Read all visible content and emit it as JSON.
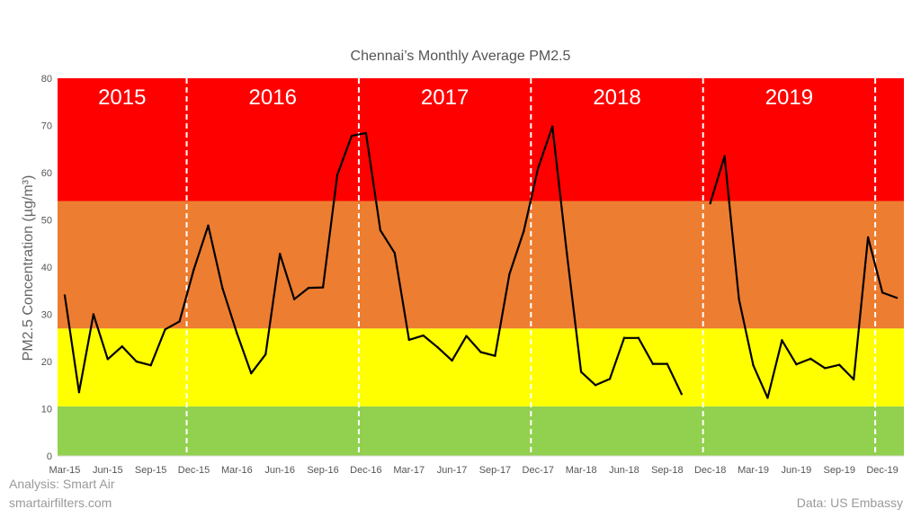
{
  "chart_data": {
    "type": "line",
    "title": "Chennai’s Monthly Average PM2.5",
    "xlabel": "",
    "ylabel": "PM2.5 Concentration (µg/m³)",
    "ylim": [
      0,
      80
    ],
    "yticks": [
      "0",
      "10",
      "20",
      "30",
      "40",
      "50",
      "60",
      "70",
      "80"
    ],
    "xticks": [
      "Mar-15",
      "Jun-15",
      "Sep-15",
      "Dec-15",
      "Mar-16",
      "Jun-16",
      "Sep-16",
      "Dec-16",
      "Mar-17",
      "Jun-17",
      "Sep-17",
      "Dec-17",
      "Mar-18",
      "Jun-18",
      "Sep-18",
      "Dec-18",
      "Mar-19",
      "Jun-19",
      "Sep-19",
      "Dec-19"
    ],
    "grid": false,
    "legend": "none",
    "bands": [
      {
        "from": 0,
        "to": 10.5,
        "color": "#92d050"
      },
      {
        "from": 10.5,
        "to": 27,
        "color": "#ffff00"
      },
      {
        "from": 27,
        "to": 54,
        "color": "#ed7d31"
      },
      {
        "from": 54,
        "to": 80,
        "color": "#ff0000"
      }
    ],
    "year_labels": [
      "2015",
      "2016",
      "2017",
      "2018",
      "2019"
    ],
    "year_dividers_after": [
      "Nov-15",
      "Nov-16",
      "Nov-17",
      "Nov-18",
      "Nov-19"
    ],
    "series": [
      {
        "color": "#000000",
        "points": [
          [
            "Mar-15",
            34
          ],
          [
            "Apr-15",
            13.5
          ],
          [
            "May-15",
            30
          ],
          [
            "Jun-15",
            20.5
          ],
          [
            "Jul-15",
            23.2
          ],
          [
            "Aug-15",
            20
          ],
          [
            "Sep-15",
            19.2
          ],
          [
            "Oct-15",
            26.8
          ],
          [
            "Nov-15",
            28.5
          ],
          [
            "Dec-15",
            39.5
          ],
          [
            "Jan-16",
            48.8
          ],
          [
            "Feb-16",
            35.5
          ],
          [
            "Mar-16",
            26
          ],
          [
            "Apr-16",
            17.5
          ],
          [
            "May-16",
            21.5
          ],
          [
            "Jun-16",
            42.8
          ],
          [
            "Jul-16",
            33.2
          ],
          [
            "Aug-16",
            35.6
          ],
          [
            "Sep-16",
            35.7
          ],
          [
            "Oct-16",
            59.5
          ],
          [
            "Nov-16",
            67.8
          ],
          [
            "Dec-16",
            68.4
          ],
          [
            "Jan-17",
            47.8
          ],
          [
            "Feb-17",
            43
          ],
          [
            "Mar-17",
            24.6
          ],
          [
            "Apr-17",
            25.5
          ],
          [
            "May-17",
            23
          ],
          [
            "Jun-17",
            20.2
          ],
          [
            "Jul-17",
            25.4
          ],
          [
            "Aug-17",
            22
          ],
          [
            "Sep-17",
            21.2
          ],
          [
            "Oct-17",
            38.5
          ],
          [
            "Nov-17",
            47.6
          ],
          [
            "Dec-17",
            61
          ],
          [
            "Jan-18",
            69.8
          ],
          [
            "Feb-18",
            43
          ],
          [
            "Mar-18",
            17.8
          ],
          [
            "Apr-18",
            15
          ],
          [
            "May-18",
            16.3
          ],
          [
            "Jun-18",
            25
          ],
          [
            "Jul-18",
            25
          ],
          [
            "Aug-18",
            19.5
          ],
          [
            "Sep-18",
            19.5
          ],
          [
            "Oct-18",
            13.1
          ],
          [
            "Nov-18",
            null
          ],
          [
            "Dec-18",
            53.5
          ],
          [
            "Jan-19",
            63.5
          ],
          [
            "Feb-19",
            33.2
          ],
          [
            "Mar-19",
            19.2
          ],
          [
            "Apr-19",
            12.3
          ],
          [
            "May-19",
            24.5
          ],
          [
            "Jun-19",
            19.4
          ],
          [
            "Jul-19",
            20.6
          ],
          [
            "Aug-19",
            18.6
          ],
          [
            "Sep-19",
            19.3
          ],
          [
            "Oct-19",
            16.2
          ],
          [
            "Nov-19",
            46.3
          ],
          [
            "Dec-19",
            34.6
          ],
          [
            "Jan-20",
            33.5
          ]
        ]
      }
    ]
  },
  "credits": {
    "analysis_line1": "Analysis: Smart Air",
    "analysis_line2": "smartairfilters.com",
    "data_source": "Data: US Embassy"
  }
}
